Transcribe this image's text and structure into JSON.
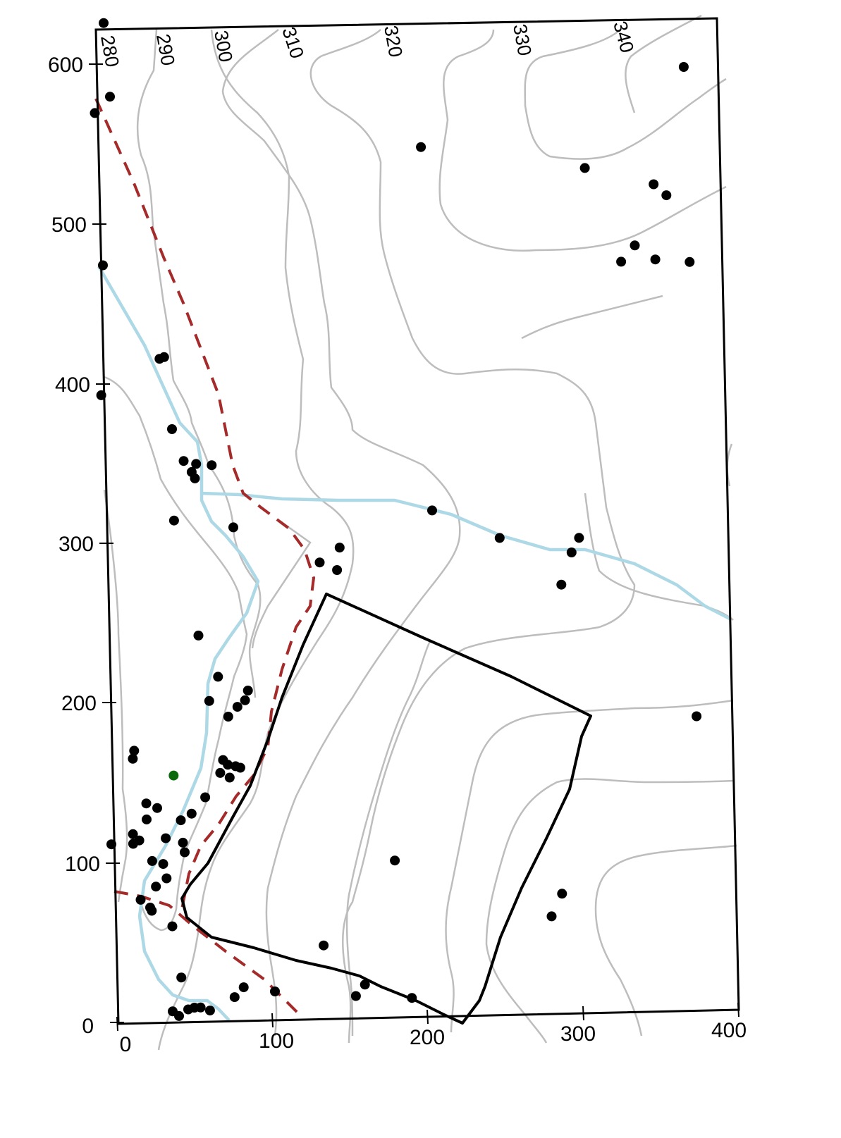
{
  "axes": {
    "x_ticks": [
      "0",
      "100",
      "200",
      "300",
      "400"
    ],
    "y_ticks": [
      "0",
      "100",
      "200",
      "300",
      "400",
      "500",
      "600"
    ]
  },
  "contour_labels": [
    "280",
    "290",
    "300",
    "310",
    "320",
    "330",
    "340"
  ],
  "colors": {
    "contour": "#bdbdbd",
    "stream": "#add8e6",
    "road": "#a52a2a",
    "boundary": "#000000",
    "point": "#000000",
    "highlight_point": "#0b6a0b"
  },
  "points": [
    [
      6,
      624
    ],
    [
      9,
      578
    ],
    [
      -1,
      568
    ],
    [
      2,
      473
    ],
    [
      -1,
      392
    ],
    [
      40,
      415
    ],
    [
      37,
      414
    ],
    [
      44,
      370
    ],
    [
      51,
      350
    ],
    [
      59,
      348
    ],
    [
      56,
      343
    ],
    [
      58,
      339
    ],
    [
      69,
      347
    ],
    [
      44,
      313
    ],
    [
      82,
      308
    ],
    [
      137,
      285
    ],
    [
      148,
      280
    ],
    [
      150,
      294
    ],
    [
      58,
      241
    ],
    [
      64,
      200
    ],
    [
      70,
      215
    ],
    [
      76,
      190
    ],
    [
      82,
      196
    ],
    [
      87,
      200
    ],
    [
      89,
      206
    ],
    [
      15,
      170
    ],
    [
      14,
      165
    ],
    [
      22,
      137
    ],
    [
      29,
      134
    ],
    [
      22,
      127
    ],
    [
      44,
      126
    ],
    [
      51,
      130
    ],
    [
      60,
      140
    ],
    [
      72,
      163
    ],
    [
      70,
      155
    ],
    [
      75,
      160
    ],
    [
      76,
      152
    ],
    [
      80,
      159
    ],
    [
      83,
      158
    ],
    [
      13,
      118
    ],
    [
      13,
      112
    ],
    [
      17,
      114
    ],
    [
      34,
      115
    ],
    [
      45,
      112
    ],
    [
      46,
      106
    ],
    [
      25,
      101
    ],
    [
      32,
      99
    ],
    [
      34,
      90
    ],
    [
      27,
      85
    ],
    [
      -1,
      112
    ],
    [
      17,
      77
    ],
    [
      23,
      72
    ],
    [
      24,
      70
    ],
    [
      37,
      60
    ],
    [
      42,
      28
    ],
    [
      36,
      7
    ],
    [
      40,
      4
    ],
    [
      46,
      8
    ],
    [
      50,
      9
    ],
    [
      54,
      9
    ],
    [
      60,
      7
    ],
    [
      76,
      15
    ],
    [
      82,
      21
    ],
    [
      102,
      18
    ],
    [
      134,
      46
    ],
    [
      154,
      14
    ],
    [
      160,
      21
    ],
    [
      190,
      12
    ],
    [
      181,
      98
    ],
    [
      281,
      61
    ],
    [
      288,
      75
    ],
    [
      377,
      184
    ],
    [
      253,
      298
    ],
    [
      292,
      268
    ],
    [
      299,
      288
    ],
    [
      304,
      297
    ],
    [
      210,
      316
    ],
    [
      208,
      543
    ],
    [
      313,
      528
    ],
    [
      357,
      517
    ],
    [
      365,
      510
    ],
    [
      335,
      469
    ],
    [
      344,
      479
    ],
    [
      357,
      470
    ],
    [
      379,
      468
    ],
    [
      378,
      590
    ]
  ],
  "highlight_point": [
    40,
    154
  ]
}
